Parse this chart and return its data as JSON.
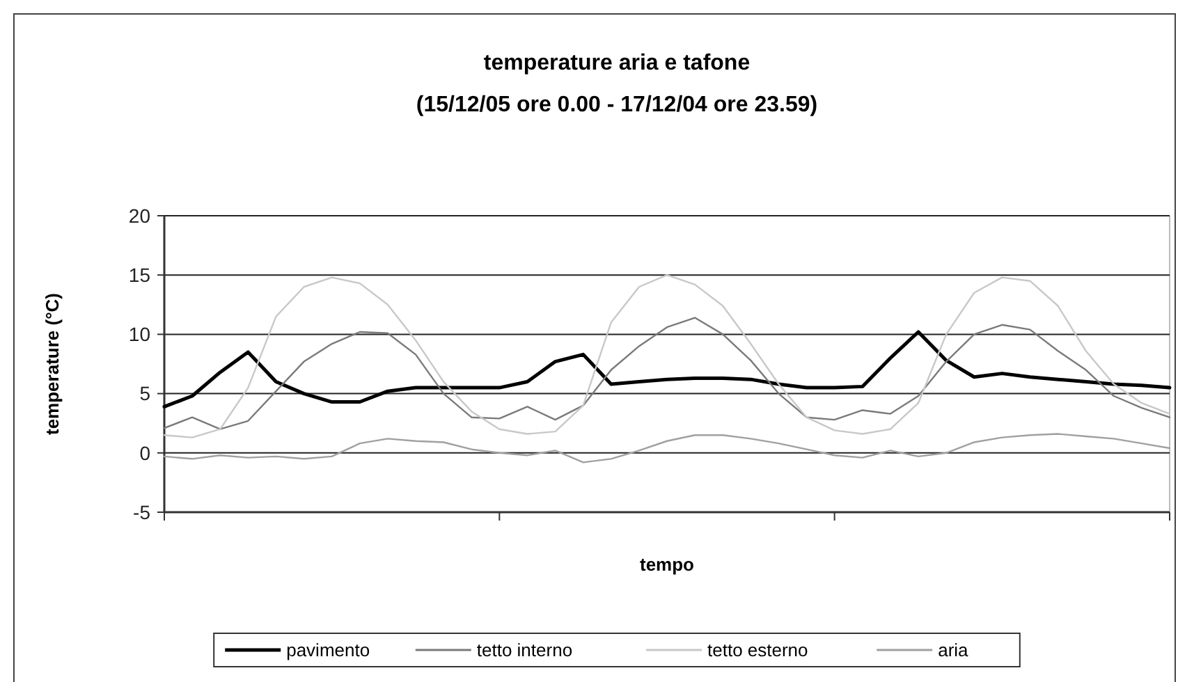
{
  "chart_data": {
    "type": "line",
    "title": "temperature aria e tafone",
    "subtitle": "(15/12/05 ore 0.00 - 17/12/04 ore 23.59)",
    "xlabel": "tempo",
    "ylabel": "temperature (°C)",
    "categories": [
      null,
      null,
      null,
      null,
      null,
      null,
      null,
      null,
      null,
      null,
      null,
      null,
      null,
      null,
      null,
      null,
      null,
      null,
      null,
      null,
      null,
      null,
      null,
      null,
      null,
      null,
      null,
      null,
      null,
      null,
      null,
      null,
      null,
      null,
      null,
      null,
      null
    ],
    "ylim": [
      -5,
      20
    ],
    "yticks": [
      -5,
      0,
      5,
      10,
      15,
      20
    ],
    "grid": "y",
    "legend": "bottom",
    "marker": "none",
    "line_style": "solid",
    "series": [
      {
        "name": "pavimento",
        "color": "#000000",
        "values": [
          3.9,
          4.8,
          6.8,
          8.5,
          6.0,
          5.0,
          4.3,
          4.3,
          5.2,
          5.5,
          5.5,
          5.5,
          5.5,
          6.0,
          7.7,
          8.3,
          5.8,
          6.0,
          6.2,
          6.3,
          6.3,
          6.2,
          5.8,
          5.5,
          5.5,
          5.6,
          8.0,
          10.2,
          7.8,
          6.4,
          6.7,
          6.4,
          6.2,
          6.0,
          5.8,
          5.7,
          5.5
        ]
      },
      {
        "name": "tetto interno",
        "color": "#7a7a7a",
        "values": [
          2.1,
          3.0,
          2.0,
          2.7,
          5.2,
          7.7,
          9.2,
          10.2,
          10.1,
          8.3,
          5.0,
          3.0,
          2.9,
          3.9,
          2.8,
          4.0,
          7.0,
          9.0,
          10.6,
          11.4,
          10.0,
          7.8,
          5.0,
          3.0,
          2.8,
          3.6,
          3.3,
          4.8,
          7.7,
          10.0,
          10.8,
          10.4,
          8.6,
          7.0,
          4.8,
          3.8,
          3.0
        ]
      },
      {
        "name": "tetto esterno",
        "color": "#c8c8c8",
        "values": [
          1.5,
          1.3,
          2.0,
          5.5,
          11.5,
          14.0,
          14.8,
          14.3,
          12.5,
          9.5,
          6.0,
          3.5,
          2.0,
          1.6,
          1.8,
          4.0,
          11.0,
          14.0,
          15.0,
          14.2,
          12.4,
          9.2,
          5.8,
          3.0,
          1.9,
          1.6,
          2.0,
          4.2,
          10.0,
          13.5,
          14.8,
          14.5,
          12.4,
          8.6,
          5.8,
          4.2,
          3.3
        ]
      },
      {
        "name": "aria",
        "color": "#a0a0a0",
        "values": [
          -0.3,
          -0.5,
          -0.2,
          -0.4,
          -0.3,
          -0.5,
          -0.3,
          0.8,
          1.2,
          1.0,
          0.9,
          0.3,
          0.0,
          -0.2,
          0.2,
          -0.8,
          -0.5,
          0.2,
          1.0,
          1.5,
          1.5,
          1.2,
          0.8,
          0.3,
          -0.2,
          -0.4,
          0.2,
          -0.3,
          0.0,
          0.9,
          1.3,
          1.5,
          1.6,
          1.4,
          1.2,
          0.8,
          0.4
        ]
      }
    ]
  }
}
